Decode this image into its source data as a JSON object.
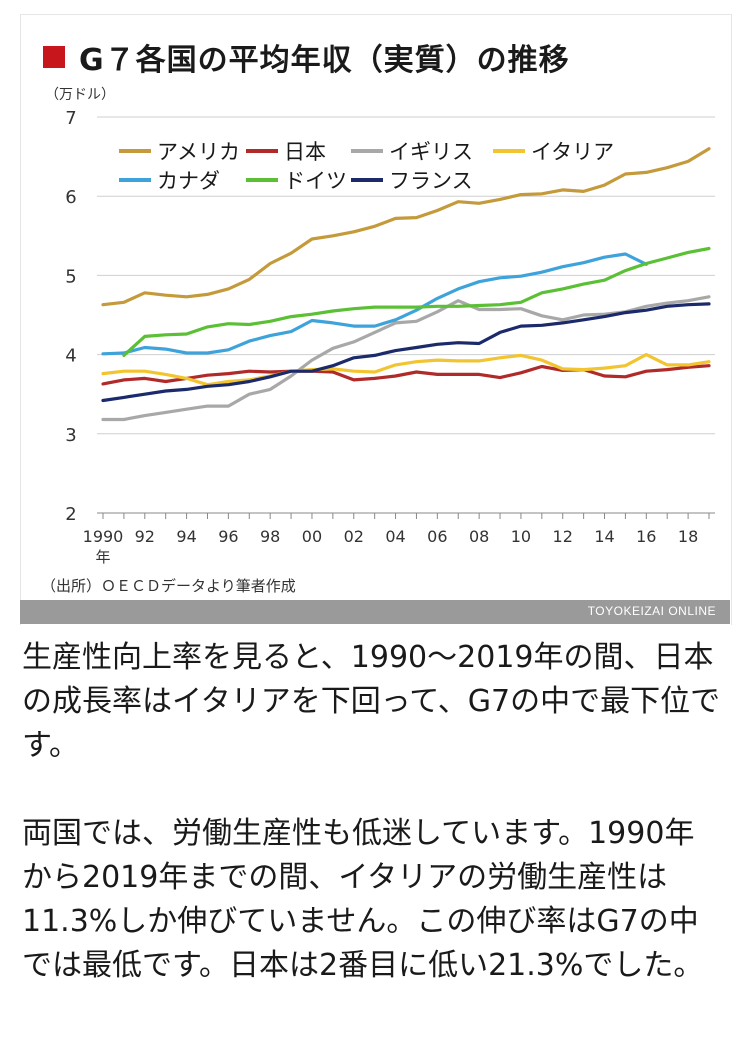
{
  "figure": {
    "title": "G７各国の平均年収（実質）の推移",
    "source": "（出所）ＯＥＣＤデータより筆者作成",
    "credit": "TOYOKEIZAI ONLINE",
    "title_square_color": "#c8161d"
  },
  "chart_data": {
    "type": "line",
    "title": "G７各国の平均年収（実質）の推移",
    "ylabel": "（万ドル）",
    "xlabel": "年",
    "ylim": [
      2,
      7
    ],
    "yticks": [
      "2",
      "3",
      "4",
      "5",
      "6",
      "7"
    ],
    "xlim": [
      1990,
      2019
    ],
    "xticks": [
      "1990",
      "92",
      "94",
      "96",
      "98",
      "00",
      "02",
      "04",
      "06",
      "08",
      "10",
      "12",
      "14",
      "16",
      "18"
    ],
    "xtick_values": [
      1990,
      1992,
      1994,
      1996,
      1998,
      2000,
      2002,
      2004,
      2006,
      2008,
      2010,
      2012,
      2014,
      2016,
      2018
    ],
    "grid": true,
    "legend_position": "top-left",
    "series": [
      {
        "name": "アメリカ",
        "color": "#c49a3a",
        "x": [
          1990,
          1991,
          1992,
          1993,
          1994,
          1995,
          1996,
          1997,
          1998,
          1999,
          2000,
          2001,
          2002,
          2003,
          2004,
          2005,
          2006,
          2007,
          2008,
          2009,
          2010,
          2011,
          2012,
          2013,
          2014,
          2015,
          2016,
          2017,
          2018,
          2019
        ],
        "values": [
          4.63,
          4.66,
          4.78,
          4.75,
          4.73,
          4.76,
          4.83,
          4.95,
          5.15,
          5.28,
          5.46,
          5.5,
          5.55,
          5.62,
          5.72,
          5.73,
          5.82,
          5.93,
          5.91,
          5.96,
          6.02,
          6.03,
          6.08,
          6.06,
          6.14,
          6.28,
          6.3,
          6.36,
          6.44,
          6.6
        ]
      },
      {
        "name": "日本",
        "color": "#b02a2a",
        "x": [
          1990,
          1991,
          1992,
          1993,
          1994,
          1995,
          1996,
          1997,
          1998,
          1999,
          2000,
          2001,
          2002,
          2003,
          2004,
          2005,
          2006,
          2007,
          2008,
          2009,
          2010,
          2011,
          2012,
          2013,
          2014,
          2015,
          2016,
          2017,
          2018,
          2019
        ],
        "values": [
          3.63,
          3.68,
          3.7,
          3.66,
          3.7,
          3.74,
          3.76,
          3.79,
          3.78,
          3.79,
          3.79,
          3.78,
          3.68,
          3.7,
          3.73,
          3.78,
          3.75,
          3.75,
          3.75,
          3.71,
          3.77,
          3.85,
          3.8,
          3.81,
          3.73,
          3.72,
          3.79,
          3.81,
          3.84,
          3.86
        ]
      },
      {
        "name": "イギリス",
        "color": "#a8a8a8",
        "x": [
          1990,
          1991,
          1992,
          1993,
          1994,
          1995,
          1996,
          1997,
          1998,
          1999,
          2000,
          2001,
          2002,
          2003,
          2004,
          2005,
          2006,
          2007,
          2008,
          2009,
          2010,
          2011,
          2012,
          2013,
          2014,
          2015,
          2016,
          2017,
          2018,
          2019
        ],
        "values": [
          3.18,
          3.18,
          3.23,
          3.27,
          3.31,
          3.35,
          3.35,
          3.5,
          3.56,
          3.73,
          3.93,
          4.08,
          4.16,
          4.28,
          4.4,
          4.42,
          4.54,
          4.68,
          4.57,
          4.57,
          4.58,
          4.49,
          4.44,
          4.5,
          4.51,
          4.54,
          4.61,
          4.65,
          4.68,
          4.73
        ]
      },
      {
        "name": "イタリア",
        "color": "#f2c530",
        "x": [
          1990,
          1991,
          1992,
          1993,
          1994,
          1995,
          1996,
          1997,
          1998,
          1999,
          2000,
          2001,
          2002,
          2003,
          2004,
          2005,
          2006,
          2007,
          2008,
          2009,
          2010,
          2011,
          2012,
          2013,
          2014,
          2015,
          2016,
          2017,
          2018,
          2019
        ],
        "values": [
          3.76,
          3.79,
          3.79,
          3.75,
          3.7,
          3.62,
          3.66,
          3.68,
          3.73,
          3.79,
          3.81,
          3.82,
          3.79,
          3.78,
          3.87,
          3.91,
          3.93,
          3.92,
          3.92,
          3.96,
          3.99,
          3.93,
          3.82,
          3.81,
          3.83,
          3.86,
          4.0,
          3.87,
          3.87,
          3.91
        ]
      },
      {
        "name": "カナダ",
        "color": "#3fa3db",
        "x": [
          1990,
          1991,
          1992,
          1993,
          1994,
          1995,
          1996,
          1997,
          1998,
          1999,
          2000,
          2001,
          2002,
          2003,
          2004,
          2005,
          2006,
          2007,
          2008,
          2009,
          2010,
          2011,
          2012,
          2013,
          2014,
          2015,
          2016
        ],
        "values": [
          4.01,
          4.02,
          4.09,
          4.07,
          4.02,
          4.02,
          4.06,
          4.17,
          4.24,
          4.29,
          4.43,
          4.4,
          4.36,
          4.36,
          4.44,
          4.56,
          4.71,
          4.83,
          4.92,
          4.97,
          4.99,
          5.04,
          5.11,
          5.16,
          5.23,
          5.27,
          5.14
        ]
      },
      {
        "name": "ドイツ",
        "color": "#5bc035",
        "x": [
          1991,
          1992,
          1993,
          1994,
          1995,
          1996,
          1997,
          1998,
          1999,
          2000,
          2001,
          2002,
          2003,
          2004,
          2005,
          2006,
          2007,
          2008,
          2009,
          2010,
          2011,
          2012,
          2013,
          2014,
          2015,
          2016,
          2017,
          2018,
          2019
        ],
        "values": [
          3.99,
          4.23,
          4.25,
          4.26,
          4.35,
          4.39,
          4.38,
          4.42,
          4.48,
          4.51,
          4.55,
          4.58,
          4.6,
          4.6,
          4.6,
          4.61,
          4.61,
          4.62,
          4.63,
          4.66,
          4.78,
          4.83,
          4.89,
          4.94,
          5.06,
          5.15,
          5.22,
          5.29,
          5.34
        ]
      },
      {
        "name": "フランス",
        "color": "#1b2a6b",
        "x": [
          1990,
          1991,
          1992,
          1993,
          1994,
          1995,
          1996,
          1997,
          1998,
          1999,
          2000,
          2001,
          2002,
          2003,
          2004,
          2005,
          2006,
          2007,
          2008,
          2009,
          2010,
          2011,
          2012,
          2013,
          2014,
          2015,
          2016,
          2017,
          2018,
          2019
        ],
        "values": [
          3.42,
          3.46,
          3.5,
          3.54,
          3.56,
          3.6,
          3.62,
          3.66,
          3.72,
          3.79,
          3.79,
          3.86,
          3.96,
          3.99,
          4.05,
          4.09,
          4.13,
          4.15,
          4.14,
          4.28,
          4.36,
          4.37,
          4.4,
          4.44,
          4.48,
          4.53,
          4.56,
          4.61,
          4.63,
          4.64
        ]
      }
    ]
  },
  "article": {
    "paragraph1": "生産性向上率を見ると、1990〜2019年の間、日本の成長率はイタリアを下回って、G7の中で最下位です。",
    "paragraph2": "両国では、労働生産性も低迷しています。1990年から2019年までの間、イタリアの労働生産性は11.3%しか伸びていません。この伸び率はG7の中では最低です。日本は2番目に低い21.3%でした。"
  }
}
